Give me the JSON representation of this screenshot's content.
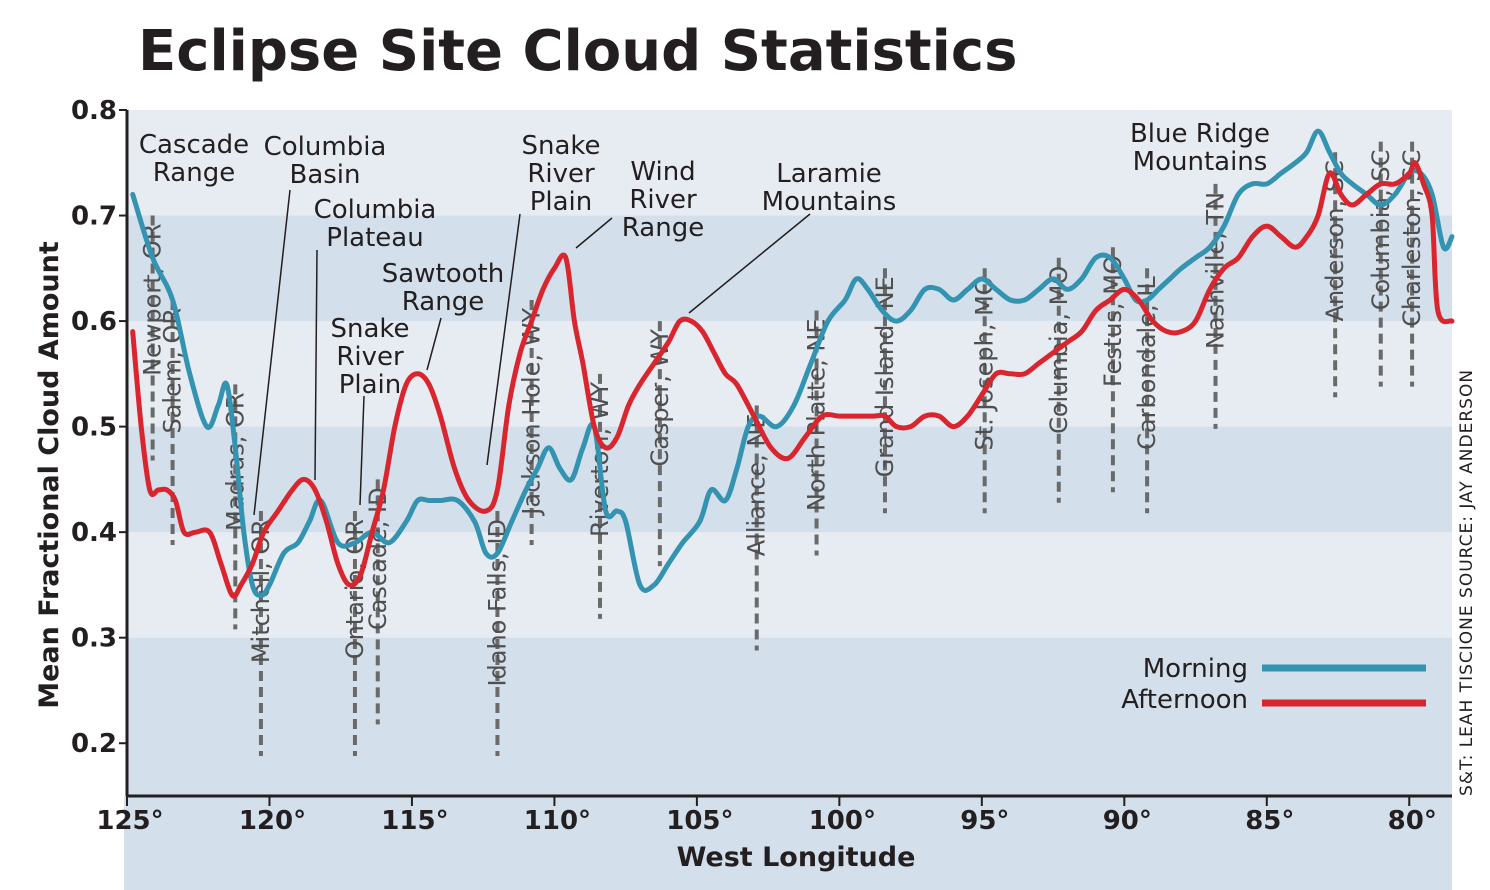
{
  "chart_data": {
    "type": "line",
    "title": "Eclipse Site Cloud Statistics",
    "xlabel": "West Longitude",
    "ylabel": "Mean Fractional Cloud Amount",
    "xlim": [
      125,
      78.5
    ],
    "ylim": [
      0.15,
      0.8
    ],
    "x_ticks": [
      125,
      120,
      115,
      110,
      105,
      100,
      95,
      90,
      85,
      80
    ],
    "x_tick_labels": [
      "125°",
      "120°",
      "115°",
      "110°",
      "105°",
      "100°",
      "95°",
      "90°",
      "85°",
      "80°"
    ],
    "y_ticks": [
      0.2,
      0.3,
      0.4,
      0.5,
      0.6,
      0.7,
      0.8
    ],
    "y_tick_labels": [
      "0.2",
      "0.3",
      "0.4",
      "0.5",
      "0.6",
      "0.7",
      "0.8"
    ],
    "grid": "horizontal bands",
    "legend_position": "bottom-right",
    "series": [
      {
        "name": "Morning",
        "color": "#3393b0",
        "x": [
          124.8,
          124.1,
          123.4,
          122.8,
          122.2,
          121.8,
          121.5,
          121.2,
          120.9,
          120.6,
          120.3,
          120.0,
          119.5,
          119.0,
          118.6,
          118.2,
          117.6,
          117.0,
          116.4,
          115.8,
          115.2,
          114.8,
          114.4,
          114.0,
          113.4,
          112.8,
          112.4,
          112.0,
          111.5,
          111.0,
          110.6,
          110.2,
          109.8,
          109.4,
          109.0,
          108.6,
          108.2,
          107.8,
          107.5,
          107.0,
          106.5,
          106.0,
          105.5,
          104.9,
          104.5,
          104.0,
          103.6,
          103.2,
          102.8,
          102.2,
          101.6,
          101.0,
          100.4,
          99.8,
          99.4,
          99.0,
          98.5,
          98.0,
          97.5,
          97.0,
          96.5,
          96.0,
          95.5,
          95.0,
          94.5,
          94.0,
          93.5,
          93.0,
          92.5,
          92.0,
          91.5,
          91.0,
          90.5,
          90.0,
          89.6,
          89.2,
          88.8,
          88.4,
          88.0,
          87.5,
          87.0,
          86.5,
          86.0,
          85.5,
          85.0,
          84.5,
          84.0,
          83.6,
          83.2,
          82.8,
          82.4,
          82.0,
          81.5,
          81.0,
          80.5,
          80.0,
          79.6,
          79.2,
          78.8,
          78.5
        ],
        "values": [
          0.72,
          0.66,
          0.62,
          0.55,
          0.5,
          0.52,
          0.54,
          0.48,
          0.4,
          0.35,
          0.34,
          0.35,
          0.38,
          0.39,
          0.41,
          0.43,
          0.39,
          0.39,
          0.4,
          0.39,
          0.41,
          0.43,
          0.43,
          0.43,
          0.43,
          0.41,
          0.38,
          0.38,
          0.41,
          0.44,
          0.46,
          0.48,
          0.46,
          0.45,
          0.48,
          0.5,
          0.42,
          0.42,
          0.41,
          0.35,
          0.35,
          0.37,
          0.39,
          0.41,
          0.44,
          0.43,
          0.46,
          0.5,
          0.51,
          0.5,
          0.52,
          0.56,
          0.6,
          0.62,
          0.64,
          0.63,
          0.61,
          0.6,
          0.61,
          0.63,
          0.63,
          0.62,
          0.63,
          0.64,
          0.63,
          0.62,
          0.62,
          0.63,
          0.64,
          0.63,
          0.64,
          0.66,
          0.66,
          0.64,
          0.62,
          0.62,
          0.63,
          0.64,
          0.65,
          0.66,
          0.67,
          0.69,
          0.72,
          0.73,
          0.73,
          0.74,
          0.75,
          0.76,
          0.78,
          0.76,
          0.74,
          0.73,
          0.72,
          0.71,
          0.72,
          0.74,
          0.74,
          0.72,
          0.67,
          0.68
        ]
      },
      {
        "name": "Afternoon",
        "color": "#d9252e",
        "x": [
          124.8,
          124.5,
          124.2,
          123.9,
          123.6,
          123.3,
          123.0,
          122.6,
          122.1,
          121.7,
          121.3,
          121.0,
          120.6,
          120.2,
          119.7,
          119.2,
          118.8,
          118.4,
          118.0,
          117.6,
          117.2,
          116.8,
          116.4,
          116.0,
          115.6,
          115.2,
          114.8,
          114.4,
          114.0,
          113.5,
          113.0,
          112.4,
          112.0,
          111.6,
          111.2,
          110.8,
          110.4,
          110.0,
          109.6,
          109.3,
          109.0,
          108.6,
          108.2,
          107.8,
          107.4,
          107.0,
          106.5,
          106.0,
          105.6,
          105.2,
          104.8,
          104.4,
          104.0,
          103.6,
          103.0,
          102.4,
          101.8,
          101.2,
          100.6,
          100.0,
          99.4,
          98.8,
          98.4,
          98.0,
          97.5,
          97.0,
          96.5,
          96.0,
          95.5,
          95.0,
          94.5,
          94.0,
          93.5,
          93.0,
          92.5,
          92.0,
          91.5,
          91.0,
          90.5,
          90.0,
          89.5,
          89.0,
          88.5,
          88.0,
          87.5,
          87.0,
          86.5,
          86.0,
          85.5,
          85.0,
          84.5,
          84.0,
          83.6,
          83.2,
          82.8,
          82.4,
          82.0,
          81.5,
          81.0,
          80.5,
          80.0,
          79.8,
          79.5,
          79.2,
          79.0,
          78.5
        ],
        "values": [
          0.59,
          0.5,
          0.44,
          0.44,
          0.44,
          0.43,
          0.4,
          0.4,
          0.4,
          0.37,
          0.34,
          0.35,
          0.37,
          0.4,
          0.42,
          0.44,
          0.45,
          0.44,
          0.41,
          0.37,
          0.35,
          0.36,
          0.4,
          0.44,
          0.5,
          0.54,
          0.55,
          0.54,
          0.51,
          0.46,
          0.43,
          0.42,
          0.44,
          0.52,
          0.57,
          0.6,
          0.63,
          0.65,
          0.66,
          0.6,
          0.56,
          0.5,
          0.48,
          0.49,
          0.52,
          0.54,
          0.56,
          0.58,
          0.6,
          0.6,
          0.59,
          0.57,
          0.55,
          0.54,
          0.51,
          0.48,
          0.47,
          0.49,
          0.51,
          0.51,
          0.51,
          0.51,
          0.51,
          0.5,
          0.5,
          0.51,
          0.51,
          0.5,
          0.51,
          0.53,
          0.55,
          0.55,
          0.55,
          0.56,
          0.57,
          0.58,
          0.59,
          0.61,
          0.62,
          0.63,
          0.62,
          0.6,
          0.59,
          0.59,
          0.6,
          0.63,
          0.65,
          0.66,
          0.68,
          0.69,
          0.68,
          0.67,
          0.68,
          0.7,
          0.74,
          0.72,
          0.71,
          0.72,
          0.73,
          0.73,
          0.74,
          0.75,
          0.73,
          0.7,
          0.61,
          0.6
        ]
      }
    ],
    "sites": [
      {
        "label": "Newport, OR",
        "lon": 124.1,
        "top": 0.7
      },
      {
        "label": "Salem, OR",
        "lon": 123.4,
        "top": 0.62
      },
      {
        "label": "Madras, OR",
        "lon": 121.2,
        "top": 0.54
      },
      {
        "label": "Mitchell, OR",
        "lon": 120.3,
        "top": 0.42
      },
      {
        "label": "Ontario, OR",
        "lon": 117.0,
        "top": 0.42
      },
      {
        "label": "Cascade, ID",
        "lon": 116.2,
        "top": 0.45
      },
      {
        "label": "Idaho Falls, ID",
        "lon": 112.0,
        "top": 0.42
      },
      {
        "label": "Jackson Hole, WY",
        "lon": 110.8,
        "top": 0.62
      },
      {
        "label": "Riverton, WY",
        "lon": 108.4,
        "top": 0.55
      },
      {
        "label": "Casper, WY",
        "lon": 106.3,
        "top": 0.6
      },
      {
        "label": "Alliance, NE",
        "lon": 102.9,
        "top": 0.52
      },
      {
        "label": "North Platte, NE",
        "lon": 100.8,
        "top": 0.61
      },
      {
        "label": "Grand Island, NE",
        "lon": 98.4,
        "top": 0.65
      },
      {
        "label": "St. Joseph, MO",
        "lon": 94.9,
        "top": 0.65
      },
      {
        "label": "Columbia, MO",
        "lon": 92.3,
        "top": 0.66
      },
      {
        "label": "Festus, MO",
        "lon": 90.4,
        "top": 0.67
      },
      {
        "label": "Carbondale, IL",
        "lon": 89.2,
        "top": 0.65
      },
      {
        "label": "Nashville, TN",
        "lon": 86.8,
        "top": 0.73
      },
      {
        "label": "Anderson, SC",
        "lon": 82.6,
        "top": 0.76
      },
      {
        "label": "Columbia, SC",
        "lon": 81.0,
        "top": 0.77
      },
      {
        "label": "Charleston, SC",
        "lon": 79.9,
        "top": 0.77
      }
    ],
    "annotations": [
      {
        "lines": [
          "Cascade",
          "Range"
        ]
      },
      {
        "lines": [
          "Columbia",
          "Basin"
        ]
      },
      {
        "lines": [
          "Columbia",
          "Plateau"
        ]
      },
      {
        "lines": [
          "Snake",
          "River",
          "Plain"
        ]
      },
      {
        "lines": [
          "Sawtooth",
          "Range"
        ]
      },
      {
        "lines": [
          "Snake",
          "River",
          "Plain"
        ]
      },
      {
        "lines": [
          "Wind",
          "River",
          "Range"
        ]
      },
      {
        "lines": [
          "Laramie",
          "Mountains"
        ]
      },
      {
        "lines": [
          "Blue Ridge",
          "Mountains"
        ]
      }
    ],
    "credit": "S&T: LEAH TISCIONE SOURCE: JAY ANDERSON"
  }
}
